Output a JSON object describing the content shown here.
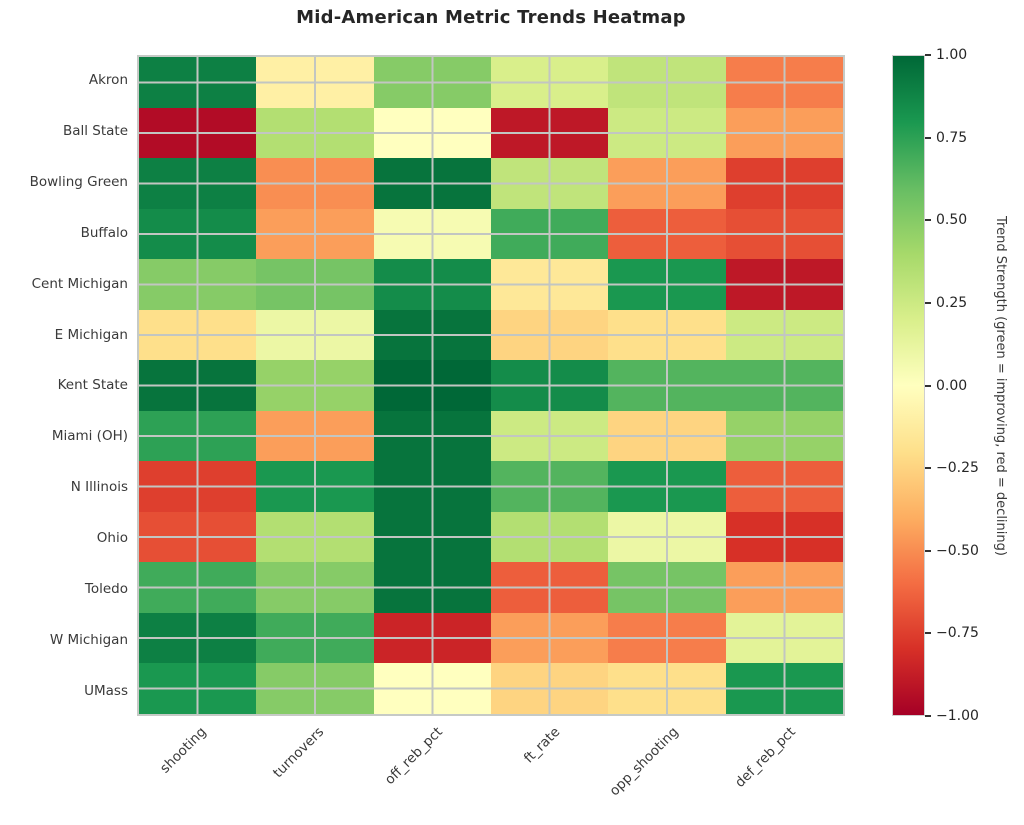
{
  "title": "Mid-American Metric Trends Heatmap",
  "chart_data": {
    "type": "heatmap",
    "title": "Mid-American Metric Trends Heatmap",
    "rows": [
      "Akron",
      "Ball State",
      "Bowling Green",
      "Buffalo",
      "Cent Michigan",
      "E Michigan",
      "Kent State",
      "Miami (OH)",
      "N Illinois",
      "Ohio",
      "Toledo",
      "W Michigan",
      "UMass"
    ],
    "columns": [
      "shooting",
      "turnovers",
      "off_reb_pct",
      "ft_rate",
      "opp_shooting",
      "def_reb_pct"
    ],
    "values": [
      [
        0.9,
        -0.1,
        0.5,
        0.2,
        0.3,
        -0.55
      ],
      [
        -0.95,
        0.35,
        0.0,
        -0.9,
        0.25,
        -0.45
      ],
      [
        0.9,
        -0.5,
        0.95,
        0.3,
        -0.45,
        -0.75
      ],
      [
        0.85,
        -0.45,
        0.05,
        0.7,
        -0.65,
        -0.7
      ],
      [
        0.5,
        0.55,
        0.85,
        -0.15,
        0.8,
        -0.9
      ],
      [
        -0.2,
        0.1,
        0.95,
        -0.25,
        -0.2,
        0.25
      ],
      [
        0.95,
        0.45,
        1.0,
        0.85,
        0.65,
        0.65
      ],
      [
        0.75,
        -0.45,
        0.95,
        0.25,
        -0.25,
        0.45
      ],
      [
        -0.75,
        0.8,
        0.95,
        0.65,
        0.8,
        -0.65
      ],
      [
        -0.7,
        0.35,
        0.95,
        0.35,
        0.1,
        -0.8
      ],
      [
        0.7,
        0.5,
        0.95,
        -0.65,
        0.55,
        -0.45
      ],
      [
        0.9,
        0.7,
        -0.85,
        -0.45,
        -0.55,
        0.15
      ],
      [
        0.8,
        0.5,
        0.0,
        -0.25,
        -0.2,
        0.8
      ]
    ],
    "vmin": -1,
    "vmax": 1,
    "grid": true,
    "colormap_name": "RdYlGn",
    "colormap_anchors": [
      "#a50026",
      "#d73027",
      "#f46d43",
      "#fdae61",
      "#fee08b",
      "#ffffbf",
      "#d9ef8b",
      "#a6d96a",
      "#66bd63",
      "#1a9850",
      "#006837"
    ],
    "colorbar": {
      "label": "Trend Strength (green = improving, red = declining)",
      "tick_labels": [
        "1.00",
        "0.75",
        "0.50",
        "0.25",
        "0.00",
        "−0.25",
        "−0.50",
        "−0.75",
        "−1.00"
      ],
      "tick_values": [
        1.0,
        0.75,
        0.5,
        0.25,
        0.0,
        -0.25,
        -0.5,
        -0.75,
        -1.0
      ],
      "position": "right"
    }
  },
  "colors": {
    "background": "#ffffff",
    "title_text": "#262626",
    "tick_text": "#3a3a3a",
    "grid_line": "#c2c6c2",
    "plot_border": "#c6cac6"
  }
}
